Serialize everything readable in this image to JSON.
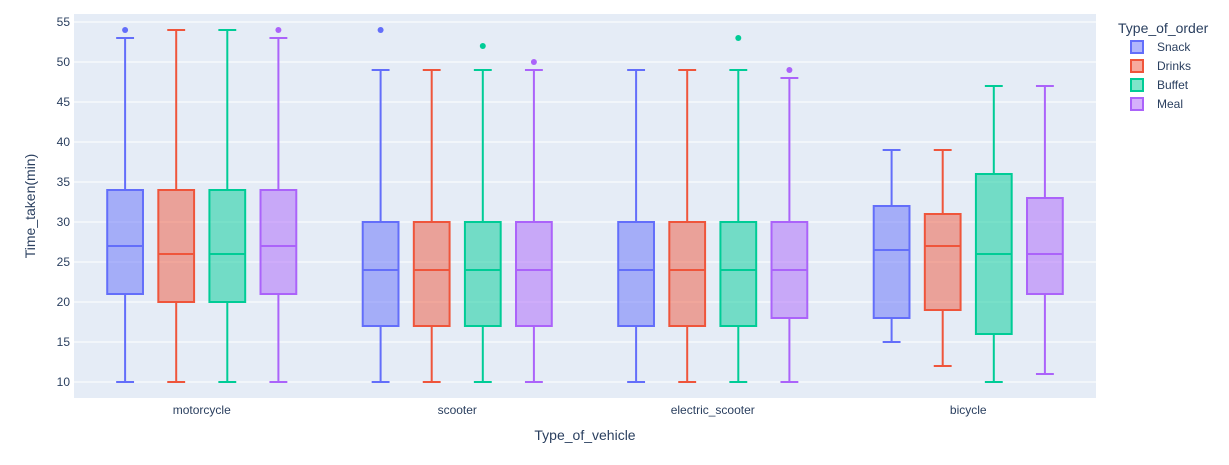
{
  "chart_data": {
    "type": "box",
    "xlabel": "Type_of_vehicle",
    "ylabel": "Time_taken(min)",
    "categories": [
      "motorcycle",
      "scooter",
      "electric_scooter",
      "bicycle"
    ],
    "ylim": [
      8,
      56
    ],
    "yticks": [
      10,
      15,
      20,
      25,
      30,
      35,
      40,
      45,
      50,
      55
    ],
    "grid": true,
    "legend": {
      "title": "Type_of_order",
      "placement": "right"
    },
    "series": [
      {
        "name": "Snack",
        "color": "#636efa",
        "boxes": [
          {
            "min": 10,
            "q1": 21,
            "median": 27,
            "q3": 34,
            "max": 53,
            "outliers": [
              54
            ]
          },
          {
            "min": 10,
            "q1": 17,
            "median": 24,
            "q3": 30,
            "max": 49,
            "outliers": [
              54
            ]
          },
          {
            "min": 10,
            "q1": 17,
            "median": 24,
            "q3": 30,
            "max": 49,
            "outliers": []
          },
          {
            "min": 15,
            "q1": 18,
            "median": 26.5,
            "q3": 32,
            "max": 39,
            "outliers": []
          }
        ]
      },
      {
        "name": "Drinks",
        "color": "#ef553b",
        "boxes": [
          {
            "min": 10,
            "q1": 20,
            "median": 26,
            "q3": 34,
            "max": 54,
            "outliers": []
          },
          {
            "min": 10,
            "q1": 17,
            "median": 24,
            "q3": 30,
            "max": 49,
            "outliers": []
          },
          {
            "min": 10,
            "q1": 17,
            "median": 24,
            "q3": 30,
            "max": 49,
            "outliers": []
          },
          {
            "min": 12,
            "q1": 19,
            "median": 27,
            "q3": 31,
            "max": 39,
            "outliers": []
          }
        ]
      },
      {
        "name": "Buffet",
        "color": "#00cc96",
        "boxes": [
          {
            "min": 10,
            "q1": 20,
            "median": 26,
            "q3": 34,
            "max": 54,
            "outliers": []
          },
          {
            "min": 10,
            "q1": 17,
            "median": 24,
            "q3": 30,
            "max": 49,
            "outliers": [
              52
            ]
          },
          {
            "min": 10,
            "q1": 17,
            "median": 24,
            "q3": 30,
            "max": 49,
            "outliers": [
              53
            ]
          },
          {
            "min": 10,
            "q1": 16,
            "median": 26,
            "q3": 36,
            "max": 47,
            "outliers": []
          }
        ]
      },
      {
        "name": "Meal",
        "color": "#ab63fa",
        "boxes": [
          {
            "min": 10,
            "q1": 21,
            "median": 27,
            "q3": 34,
            "max": 53,
            "outliers": [
              54
            ]
          },
          {
            "min": 10,
            "q1": 17,
            "median": 24,
            "q3": 30,
            "max": 49,
            "outliers": [
              50
            ]
          },
          {
            "min": 10,
            "q1": 18,
            "median": 24,
            "q3": 30,
            "max": 48,
            "outliers": [
              49
            ]
          },
          {
            "min": 11,
            "q1": 21,
            "median": 26,
            "q3": 33,
            "max": 47,
            "outliers": []
          }
        ]
      }
    ]
  }
}
